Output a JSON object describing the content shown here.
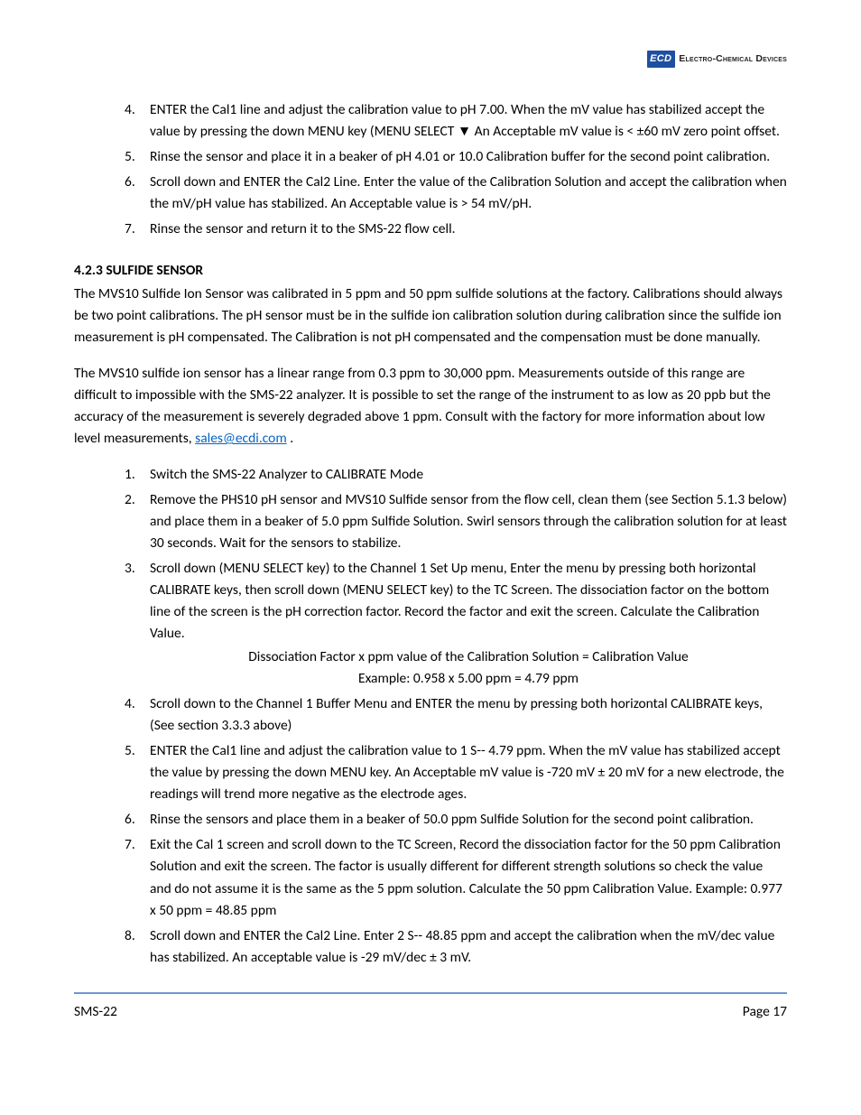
{
  "header": {
    "logo_abbrev": "ECD",
    "logo_full": "Electro-Chemical Devices"
  },
  "list1": {
    "items": [
      {
        "n": "4.",
        "text": "ENTER the Cal1 line and adjust the calibration value to pH 7.00. When the mV value has stabilized accept the value by pressing the down MENU key (MENU SELECT ▼   An Acceptable mV value is < ±60 mV zero point offset."
      },
      {
        "n": "5.",
        "text": "Rinse the sensor and place it in a beaker of pH 4.01 or 10.0 Calibration buffer for the second point calibration."
      },
      {
        "n": "6.",
        "text": "Scroll down and ENTER the Cal2 Line. Enter the value of the Calibration Solution and accept the calibration when the mV/pH value has stabilized. An Acceptable value is > 54 mV/pH."
      },
      {
        "n": "7.",
        "text": "Rinse the sensor and return it to the SMS-22 flow cell."
      }
    ]
  },
  "section": {
    "title": "4.2.3 SULFIDE SENSOR",
    "p1": "The MVS10 Sulfide Ion Sensor was calibrated in 5 ppm and 50 ppm sulfide solutions at the factory. Calibrations should always be two point calibrations. The pH sensor must be in the sulfide ion calibration solution during calibration since the sulfide ion measurement is pH compensated. The Calibration is not pH compensated and the compensation must be done manually.",
    "p2_pre": "The MVS10 sulfide ion sensor has a linear range from 0.3 ppm to 30,000 ppm. Measurements outside of this range are difficult to impossible with the SMS-22 analyzer. It is possible to set the range of the instrument to as low as 20 ppb but the accuracy of the measurement is severely degraded above 1 ppm. Consult with the factory for more information about low level measurements, ",
    "p2_link": "sales@ecdi.com",
    "p2_post": " ."
  },
  "list2": {
    "items": [
      {
        "n": "1.",
        "text": "Switch the SMS-22 Analyzer to CALIBRATE Mode"
      },
      {
        "n": "2.",
        "text": "Remove the PHS10 pH sensor and MVS10 Sulfide sensor from the flow cell, clean them (see Section 5.1.3 below) and place them in a beaker of 5.0 ppm Sulfide Solution. Swirl sensors through the calibration solution for at least 30 seconds. Wait for the sensors to stabilize."
      },
      {
        "n": "3.",
        "text": "Scroll down (MENU SELECT key) to the Channel 1 Set Up menu, Enter the menu by pressing both horizontal CALIBRATE keys, then scroll down (MENU SELECT key) to the TC Screen. The dissociation factor on the bottom line of the screen is the pH correction factor. Record the factor and exit the screen. Calculate the Calibration Value."
      },
      {
        "n": "4.",
        "text": "Scroll down to the Channel 1 Buffer Menu and ENTER the menu by pressing both horizontal CALIBRATE keys, (See section 3.3.3 above)"
      },
      {
        "n": "5.",
        "text": "ENTER the Cal1 line and adjust the calibration value to 1 S--   4.79 ppm. When the mV value has stabilized accept the value by pressing the down MENU key. An Acceptable mV value is -720 mV ± 20 mV for a new electrode, the readings will trend more negative as the electrode ages."
      },
      {
        "n": "6.",
        "text": "Rinse the sensors and place them in a beaker of 50.0 ppm Sulfide Solution for the second point calibration."
      },
      {
        "n": "7.",
        "text": "Exit the Cal 1 screen and scroll down to the TC Screen, Record the dissociation factor for the 50 ppm Calibration Solution and exit the screen. The factor is usually different for different strength solutions so check the value and do not assume it is the same as the 5 ppm solution. Calculate the 50 ppm Calibration Value. Example: 0.977 x 50 ppm = 48.85 ppm"
      },
      {
        "n": "8.",
        "text": "Scroll down and ENTER the Cal2 Line. Enter 2 S--   48.85 ppm and accept the calibration when the mV/dec value has stabilized. An acceptable value is -29 mV/dec ± 3 mV."
      }
    ],
    "calc_line1": "Dissociation Factor x ppm value of the Calibration Solution = Calibration Value",
    "calc_line2": "Example: 0.958 x 5.00 ppm = 4.79 ppm"
  },
  "footer": {
    "left": "SMS-22",
    "right": "Page 17"
  },
  "colors": {
    "link": "#0563c1",
    "rule": "#6e97cf",
    "logo_bg": "#1f4fa0"
  }
}
